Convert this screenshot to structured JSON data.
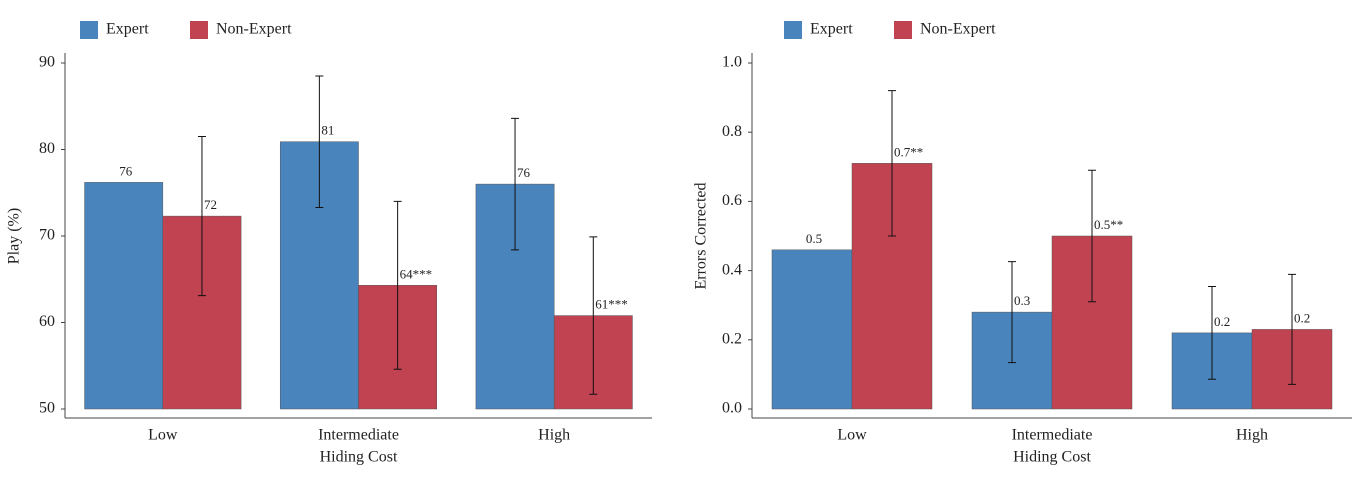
{
  "chart_data": [
    {
      "type": "bar",
      "x_label": "Hiding Cost",
      "y_label": "Play (%)",
      "categories": [
        "Low",
        "Intermediate",
        "High"
      ],
      "series": [
        {
          "name": "Expert",
          "color": "#4a84bd",
          "values": [
            76.2,
            80.9,
            76.0
          ],
          "errors": [
            null,
            7.6,
            7.6
          ],
          "value_labels": [
            "76",
            "81",
            "76"
          ]
        },
        {
          "name": "Non-Expert",
          "color": "#c14352",
          "values": [
            72.3,
            64.3,
            60.8
          ],
          "errors": [
            9.2,
            9.7,
            9.1
          ],
          "value_labels": [
            "72",
            "64***",
            "61***"
          ]
        }
      ],
      "ylim": [
        50,
        90
      ],
      "yticks": [
        50,
        60,
        70,
        80,
        90
      ]
    },
    {
      "type": "bar",
      "x_label": "Hiding Cost",
      "y_label": "Errors Corrected",
      "categories": [
        "Low",
        "Intermediate",
        "High"
      ],
      "series": [
        {
          "name": "Expert",
          "color": "#4a84bd",
          "values": [
            0.46,
            0.28,
            0.22
          ],
          "errors": [
            null,
            0.146,
            0.134
          ],
          "value_labels": [
            "0.5",
            "0.3",
            "0.2"
          ]
        },
        {
          "name": "Non-Expert",
          "color": "#c14352",
          "values": [
            0.71,
            0.5,
            0.23
          ],
          "errors": [
            0.21,
            0.19,
            0.159
          ],
          "value_labels": [
            "0.7**",
            "0.5**",
            "0.2"
          ]
        }
      ],
      "ylim": [
        0,
        1
      ],
      "yticks": [
        {
          "value": 0,
          "label": "0.0"
        },
        0.2,
        0.4,
        0.6,
        0.8,
        {
          "value": 1,
          "label": "1.0"
        }
      ]
    }
  ]
}
